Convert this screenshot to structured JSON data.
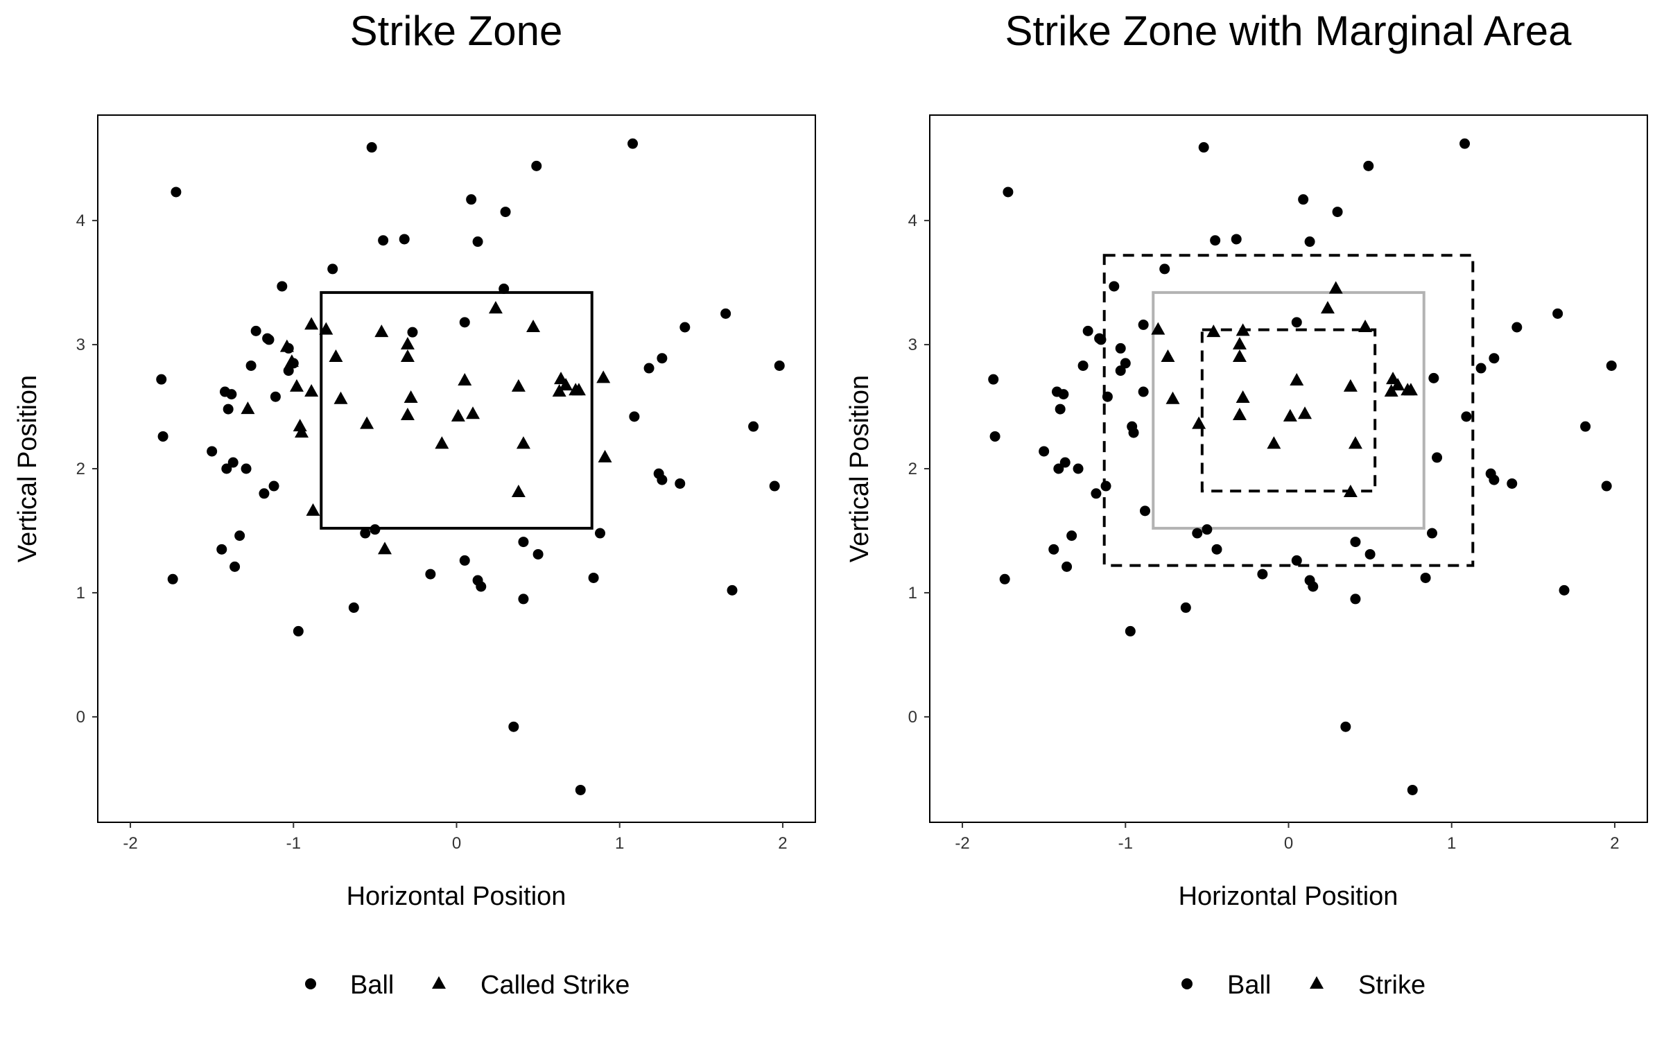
{
  "chart_data": [
    {
      "type": "scatter",
      "title": "Strike Zone",
      "xlabel": "Horizontal Position",
      "ylabel": "Vertical Position",
      "xlim": [
        -2.2,
        2.2
      ],
      "ylim": [
        -0.85,
        4.85
      ],
      "xticks": [
        -2,
        -1,
        0,
        1,
        2
      ],
      "yticks": [
        0,
        1,
        2,
        3,
        4
      ],
      "grid": false,
      "legend_position": "bottom",
      "series": [
        {
          "name": "Ball",
          "marker": "circle",
          "points": [
            [
              -1.81,
              2.72
            ],
            [
              -1.8,
              2.26
            ],
            [
              -1.74,
              1.11
            ],
            [
              -1.72,
              4.23
            ],
            [
              -1.5,
              2.14
            ],
            [
              -1.44,
              1.35
            ],
            [
              -1.42,
              2.62
            ],
            [
              -1.41,
              2.0
            ],
            [
              -1.4,
              2.48
            ],
            [
              -1.38,
              2.6
            ],
            [
              -1.37,
              2.05
            ],
            [
              -1.36,
              1.21
            ],
            [
              -1.33,
              1.46
            ],
            [
              -1.29,
              2.0
            ],
            [
              -1.26,
              2.83
            ],
            [
              -1.23,
              3.11
            ],
            [
              -1.18,
              1.8
            ],
            [
              -1.16,
              3.05
            ],
            [
              -1.15,
              3.04
            ],
            [
              -1.12,
              1.86
            ],
            [
              -1.11,
              2.58
            ],
            [
              -1.07,
              3.47
            ],
            [
              -1.03,
              2.97
            ],
            [
              -1.03,
              2.79
            ],
            [
              -1.0,
              2.85
            ],
            [
              -0.97,
              0.69
            ],
            [
              -0.76,
              3.61
            ],
            [
              -0.63,
              0.88
            ],
            [
              -0.56,
              1.48
            ],
            [
              -0.52,
              4.59
            ],
            [
              -0.5,
              1.51
            ],
            [
              -0.45,
              3.84
            ],
            [
              -0.32,
              3.85
            ],
            [
              -0.27,
              3.1
            ],
            [
              -0.16,
              1.15
            ],
            [
              0.05,
              3.18
            ],
            [
              0.05,
              1.26
            ],
            [
              0.09,
              4.17
            ],
            [
              0.13,
              3.83
            ],
            [
              0.13,
              1.1
            ],
            [
              0.15,
              1.05
            ],
            [
              0.3,
              4.07
            ],
            [
              0.29,
              3.45
            ],
            [
              0.35,
              -0.08
            ],
            [
              0.41,
              0.95
            ],
            [
              0.41,
              1.41
            ],
            [
              0.49,
              4.44
            ],
            [
              0.5,
              1.31
            ],
            [
              0.76,
              -0.59
            ],
            [
              0.84,
              1.12
            ],
            [
              0.88,
              1.48
            ],
            [
              1.08,
              4.62
            ],
            [
              1.09,
              2.42
            ],
            [
              1.18,
              2.81
            ],
            [
              1.24,
              1.96
            ],
            [
              1.26,
              2.89
            ],
            [
              1.26,
              1.91
            ],
            [
              1.37,
              1.88
            ],
            [
              1.4,
              3.14
            ],
            [
              1.65,
              3.25
            ],
            [
              1.69,
              1.02
            ],
            [
              1.82,
              2.34
            ],
            [
              1.95,
              1.86
            ],
            [
              1.98,
              2.83
            ]
          ]
        },
        {
          "name": "Called Strike",
          "marker": "triangle",
          "points": [
            [
              -1.28,
              2.48
            ],
            [
              -1.04,
              2.98
            ],
            [
              -1.01,
              2.86
            ],
            [
              -0.98,
              2.66
            ],
            [
              -0.96,
              2.34
            ],
            [
              -0.95,
              2.29
            ],
            [
              -0.89,
              3.16
            ],
            [
              -0.89,
              2.62
            ],
            [
              -0.88,
              1.66
            ],
            [
              -0.8,
              3.12
            ],
            [
              -0.74,
              2.9
            ],
            [
              -0.71,
              2.56
            ],
            [
              -0.55,
              2.36
            ],
            [
              -0.46,
              3.1
            ],
            [
              -0.44,
              1.35
            ],
            [
              -0.3,
              3.0
            ],
            [
              -0.3,
              2.9
            ],
            [
              -0.3,
              2.43
            ],
            [
              -0.28,
              2.57
            ],
            [
              -0.09,
              2.2
            ],
            [
              0.01,
              2.42
            ],
            [
              0.05,
              2.71
            ],
            [
              0.1,
              2.44
            ],
            [
              0.24,
              3.29
            ],
            [
              0.38,
              2.66
            ],
            [
              0.38,
              1.81
            ],
            [
              0.41,
              2.2
            ],
            [
              0.47,
              3.14
            ],
            [
              0.63,
              2.62
            ],
            [
              0.64,
              2.72
            ],
            [
              0.67,
              2.67
            ],
            [
              0.73,
              2.63
            ],
            [
              0.75,
              2.63
            ],
            [
              0.9,
              2.73
            ],
            [
              0.91,
              2.09
            ]
          ]
        }
      ],
      "zones": [
        {
          "x": [
            -0.83,
            0.83
          ],
          "y": [
            1.52,
            3.42
          ],
          "color": "#000000",
          "style": "solid"
        }
      ]
    },
    {
      "type": "scatter",
      "title": "Strike Zone with Marginal Area",
      "xlabel": "Horizontal Position",
      "ylabel": "Vertical Position",
      "xlim": [
        -2.2,
        2.2
      ],
      "ylim": [
        -0.85,
        4.85
      ],
      "xticks": [
        -2,
        -1,
        0,
        1,
        2
      ],
      "yticks": [
        0,
        1,
        2,
        3,
        4
      ],
      "grid": false,
      "legend_position": "bottom",
      "series": [
        {
          "name": "Ball",
          "marker": "circle",
          "points": [
            [
              -1.81,
              2.72
            ],
            [
              -1.8,
              2.26
            ],
            [
              -1.74,
              1.11
            ],
            [
              -1.72,
              4.23
            ],
            [
              -1.5,
              2.14
            ],
            [
              -1.44,
              1.35
            ],
            [
              -1.42,
              2.62
            ],
            [
              -1.41,
              2.0
            ],
            [
              -1.4,
              2.48
            ],
            [
              -1.38,
              2.6
            ],
            [
              -1.37,
              2.05
            ],
            [
              -1.36,
              1.21
            ],
            [
              -1.33,
              1.46
            ],
            [
              -1.29,
              2.0
            ],
            [
              -1.26,
              2.83
            ],
            [
              -1.23,
              3.11
            ],
            [
              -1.18,
              1.8
            ],
            [
              -1.16,
              3.05
            ],
            [
              -1.15,
              3.04
            ],
            [
              -1.12,
              1.86
            ],
            [
              -1.11,
              2.58
            ],
            [
              -1.07,
              3.47
            ],
            [
              -1.03,
              2.97
            ],
            [
              -1.03,
              2.79
            ],
            [
              -1.0,
              2.85
            ],
            [
              -0.97,
              0.69
            ],
            [
              -0.96,
              2.34
            ],
            [
              -0.95,
              2.29
            ],
            [
              -0.89,
              3.16
            ],
            [
              -0.89,
              2.62
            ],
            [
              -0.88,
              1.66
            ],
            [
              -0.76,
              3.61
            ],
            [
              -0.63,
              0.88
            ],
            [
              -0.56,
              1.48
            ],
            [
              -0.52,
              4.59
            ],
            [
              -0.5,
              1.51
            ],
            [
              -0.45,
              3.84
            ],
            [
              -0.44,
              1.35
            ],
            [
              -0.32,
              3.85
            ],
            [
              -0.16,
              1.15
            ],
            [
              0.05,
              3.18
            ],
            [
              0.05,
              1.26
            ],
            [
              0.09,
              4.17
            ],
            [
              0.13,
              3.83
            ],
            [
              0.13,
              1.1
            ],
            [
              0.15,
              1.05
            ],
            [
              0.3,
              4.07
            ],
            [
              0.35,
              -0.08
            ],
            [
              0.41,
              0.95
            ],
            [
              0.41,
              1.41
            ],
            [
              0.49,
              4.44
            ],
            [
              0.5,
              1.31
            ],
            [
              0.76,
              -0.59
            ],
            [
              0.84,
              1.12
            ],
            [
              0.88,
              1.48
            ],
            [
              0.89,
              2.73
            ],
            [
              0.91,
              2.09
            ],
            [
              1.08,
              4.62
            ],
            [
              1.09,
              2.42
            ],
            [
              1.18,
              2.81
            ],
            [
              1.24,
              1.96
            ],
            [
              1.26,
              2.89
            ],
            [
              1.26,
              1.91
            ],
            [
              1.37,
              1.88
            ],
            [
              1.4,
              3.14
            ],
            [
              1.65,
              3.25
            ],
            [
              1.69,
              1.02
            ],
            [
              1.82,
              2.34
            ],
            [
              1.95,
              1.86
            ],
            [
              1.98,
              2.83
            ]
          ]
        },
        {
          "name": "Strike",
          "marker": "triangle",
          "points": [
            [
              -0.8,
              3.12
            ],
            [
              -0.74,
              2.9
            ],
            [
              -0.71,
              2.56
            ],
            [
              -0.55,
              2.36
            ],
            [
              -0.46,
              3.1
            ],
            [
              -0.3,
              3.0
            ],
            [
              -0.3,
              2.9
            ],
            [
              -0.3,
              2.43
            ],
            [
              -0.28,
              2.57
            ],
            [
              -0.28,
              3.11
            ],
            [
              -0.09,
              2.2
            ],
            [
              0.01,
              2.42
            ],
            [
              0.05,
              2.71
            ],
            [
              0.1,
              2.44
            ],
            [
              0.24,
              3.29
            ],
            [
              0.29,
              3.45
            ],
            [
              0.38,
              2.66
            ],
            [
              0.38,
              1.81
            ],
            [
              0.41,
              2.2
            ],
            [
              0.47,
              3.14
            ],
            [
              0.63,
              2.62
            ],
            [
              0.64,
              2.72
            ],
            [
              0.67,
              2.67
            ],
            [
              0.73,
              2.63
            ],
            [
              0.75,
              2.63
            ]
          ]
        }
      ],
      "zones": [
        {
          "x": [
            -1.13,
            1.13
          ],
          "y": [
            1.22,
            3.72
          ],
          "color": "#000000",
          "style": "dashed"
        },
        {
          "x": [
            -0.83,
            0.83
          ],
          "y": [
            1.52,
            3.42
          ],
          "color": "#b3b3b3",
          "style": "solid"
        },
        {
          "x": [
            -0.53,
            0.53
          ],
          "y": [
            1.82,
            3.12
          ],
          "color": "#000000",
          "style": "dashed"
        }
      ]
    }
  ]
}
